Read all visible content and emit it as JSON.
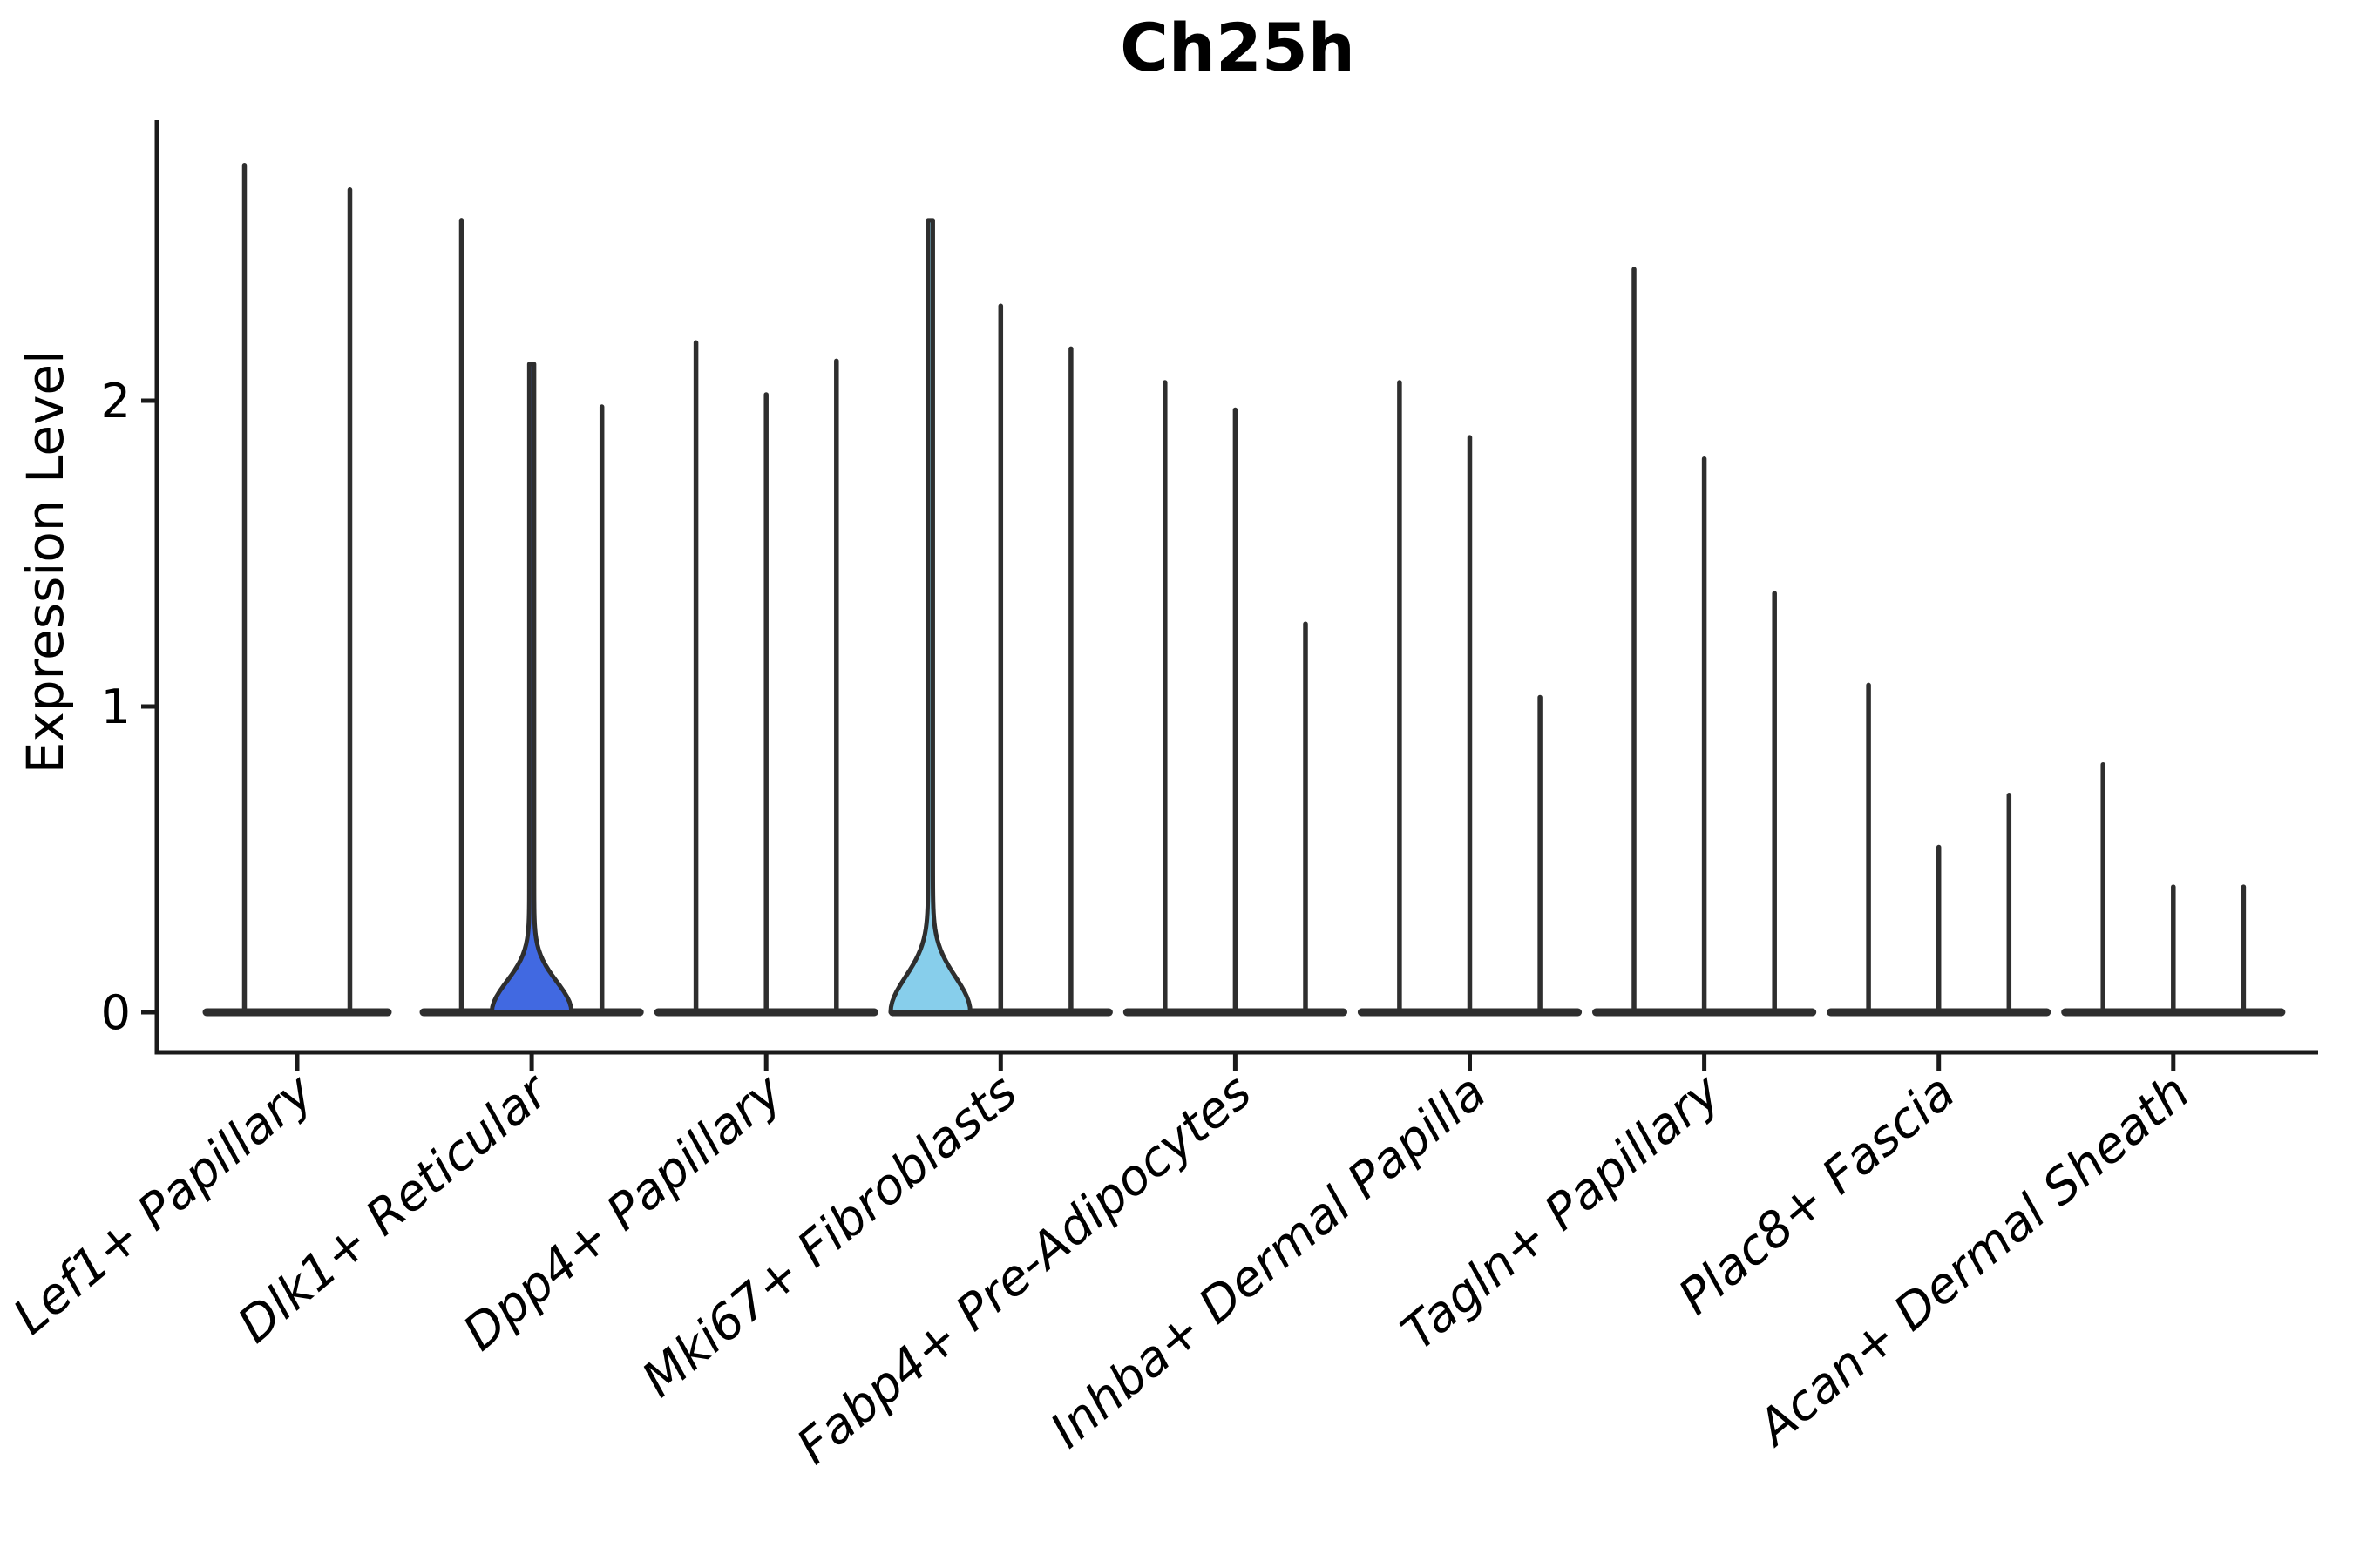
{
  "chart_data": {
    "type": "violin",
    "title": "Ch25h",
    "ylabel": "Expression Level",
    "xlabel": "",
    "yticks": [
      0,
      1,
      2
    ],
    "ylim": [
      -0.14,
      2.92
    ],
    "grid": false,
    "legend": null,
    "colors": {
      "violin_outline": "#2e2e2e",
      "axis": "#1a1a1a",
      "text": "#000000",
      "background": "#ffffff",
      "highlight_blue": "#4169e1",
      "highlight_skyblue": "#87ceeb"
    },
    "groups": [
      {
        "label": "Lef1+ Papillary",
        "violins": [
          {
            "max": 2.77,
            "fill": null
          },
          {
            "max": 2.69,
            "fill": null
          }
        ]
      },
      {
        "label": "Dlk1+ Reticular",
        "violins": [
          {
            "max": 2.59,
            "fill": null
          },
          {
            "max": 2.12,
            "fill": "#4169e1",
            "bulge_sigma": 0.1
          },
          {
            "max": 1.98,
            "fill": null
          }
        ]
      },
      {
        "label": "Dpp4+ Papillary",
        "violins": [
          {
            "max": 2.19,
            "fill": null
          },
          {
            "max": 2.02,
            "fill": null
          },
          {
            "max": 2.13,
            "fill": null
          }
        ]
      },
      {
        "label": "Mki67+ Fibroblasts",
        "violins": [
          {
            "max": 2.59,
            "fill": "#87ceeb",
            "bulge_sigma": 0.115
          },
          {
            "max": 2.31,
            "fill": null
          },
          {
            "max": 2.17,
            "fill": null
          }
        ]
      },
      {
        "label": "Fabp4+ Pre-Adipocytes",
        "violins": [
          {
            "max": 2.06,
            "fill": null
          },
          {
            "max": 1.97,
            "fill": null
          },
          {
            "max": 1.27,
            "fill": null
          }
        ]
      },
      {
        "label": "Inhba+ Dermal Papilla",
        "violins": [
          {
            "max": 2.06,
            "fill": null
          },
          {
            "max": 1.88,
            "fill": null
          },
          {
            "max": 1.03,
            "fill": null
          }
        ]
      },
      {
        "label": "Tagln+ Papillary",
        "violins": [
          {
            "max": 2.43,
            "fill": null
          },
          {
            "max": 1.81,
            "fill": null
          },
          {
            "max": 1.37,
            "fill": null
          }
        ]
      },
      {
        "label": "Plac8+ Fascia",
        "violins": [
          {
            "max": 1.07,
            "fill": null
          },
          {
            "max": 0.54,
            "fill": null
          },
          {
            "max": 0.71,
            "fill": null
          }
        ]
      },
      {
        "label": "Acan+ Dermal Sheath",
        "violins": [
          {
            "max": 0.81,
            "fill": null
          },
          {
            "max": 0.41,
            "fill": null
          },
          {
            "max": 0.41,
            "fill": null
          }
        ]
      }
    ]
  }
}
